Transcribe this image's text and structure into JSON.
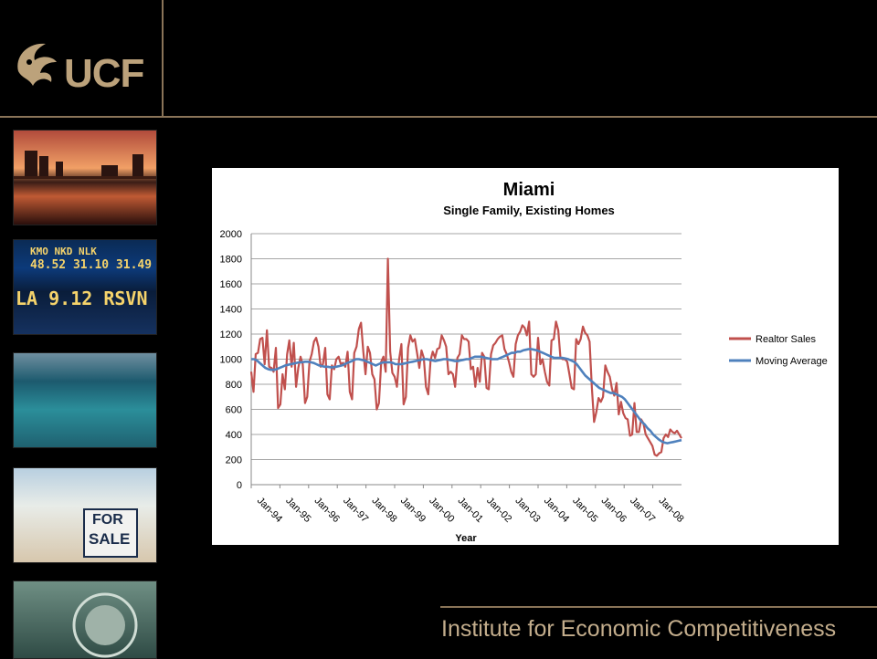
{
  "header": {
    "logo_text": "UCF"
  },
  "thumbnails": {
    "ticker_row1": "48.52 31.10 31.49",
    "ticker_symbols": "KMO NKD NLK",
    "ticker_row2": "LA 9.12 RSVN",
    "for_text": "FOR",
    "sale_text": "SALE"
  },
  "footer": {
    "text": "Institute for Economic Competitiveness"
  },
  "chart_data": {
    "type": "line",
    "title": "Miami",
    "subtitle": "Single Family, Existing Homes",
    "xlabel": "Year",
    "ylabel": "",
    "ylim": [
      0,
      2000
    ],
    "yticks": [
      0,
      200,
      400,
      600,
      800,
      1000,
      1200,
      1400,
      1600,
      1800,
      2000
    ],
    "x_tick_labels": [
      "Jan-94",
      "Jan-95",
      "Jan-96",
      "Jan-97",
      "Jan-98",
      "Jan-99",
      "Jan-00",
      "Jan-01",
      "Jan-02",
      "Jan-03",
      "Jan-04",
      "Jan-05",
      "Jan-06",
      "Jan-07",
      "Jan-08"
    ],
    "grid": true,
    "legend_position": "right",
    "series": [
      {
        "name": "Realtor Sales",
        "color": "#c0504d",
        "values": [
          900,
          740,
          1040,
          1050,
          1160,
          1170,
          960,
          1230,
          940,
          930,
          900,
          1090,
          610,
          640,
          880,
          760,
          1040,
          1150,
          940,
          1130,
          780,
          930,
          1020,
          960,
          650,
          700,
          980,
          1040,
          1140,
          1170,
          1100,
          940,
          960,
          1090,
          720,
          680,
          950,
          920,
          1000,
          1020,
          960,
          970,
          940,
          1060,
          740,
          680,
          1050,
          1100,
          1240,
          1290,
          1060,
          880,
          1100,
          1050,
          880,
          840,
          600,
          650,
          980,
          1020,
          900,
          1800,
          1060,
          890,
          860,
          780,
          1000,
          1120,
          640,
          700,
          1090,
          1190,
          1140,
          1160,
          1050,
          930,
          1070,
          1010,
          780,
          720,
          990,
          1060,
          1010,
          1080,
          1090,
          1190,
          1150,
          1100,
          880,
          900,
          880,
          780,
          1010,
          1040,
          1190,
          1160,
          1160,
          1140,
          920,
          940,
          780,
          930,
          820,
          1050,
          1020,
          770,
          760,
          1040,
          1110,
          1130,
          1160,
          1180,
          1190,
          1080,
          1040,
          980,
          900,
          860,
          1120,
          1190,
          1220,
          1270,
          1250,
          1190,
          1300,
          880,
          860,
          880,
          1170,
          960,
          1000,
          900,
          820,
          790,
          1150,
          1160,
          1300,
          1230,
          1010,
          1000,
          1000,
          980,
          880,
          770,
          760,
          1160,
          1120,
          1160,
          1260,
          1210,
          1190,
          1140,
          770,
          500,
          580,
          690,
          660,
          700,
          950,
          900,
          860,
          760,
          710,
          810,
          560,
          660,
          570,
          530,
          520,
          390,
          400,
          650,
          420,
          420,
          520,
          490,
          400,
          370,
          340,
          310,
          240,
          230,
          250,
          260,
          370,
          400,
          380,
          440,
          420,
          410,
          430,
          400,
          370
        ],
        "step": 1
      },
      {
        "name": "Moving Average",
        "color": "#4f81bd",
        "values": [
          1000,
          1000,
          990,
          970,
          950,
          930,
          920,
          915,
          915,
          920,
          930,
          940,
          950,
          955,
          960,
          965,
          970,
          975,
          975,
          980,
          980,
          975,
          970,
          960,
          950,
          945,
          940,
          940,
          935,
          935,
          940,
          945,
          950,
          960,
          970,
          980,
          990,
          1000,
          1000,
          995,
          990,
          980,
          970,
          960,
          950,
          960,
          970,
          975,
          975,
          975,
          970,
          960,
          960,
          960,
          965,
          970,
          975,
          980,
          985,
          990,
          995,
          1000,
          1000,
          995,
          990,
          985,
          990,
          995,
          1000,
          1000,
          995,
          990,
          985,
          985,
          990,
          995,
          1000,
          1000,
          1010,
          1020,
          1020,
          1020,
          1015,
          1010,
          1005,
          1000,
          1000,
          1000,
          1010,
          1020,
          1030,
          1040,
          1050,
          1050,
          1060,
          1060,
          1070,
          1075,
          1080,
          1080,
          1075,
          1070,
          1060,
          1050,
          1040,
          1030,
          1020,
          1010,
          1010,
          1010,
          1010,
          1005,
          1000,
          990,
          980,
          960,
          930,
          900,
          870,
          850,
          830,
          810,
          790,
          770,
          760,
          750,
          740,
          730,
          730,
          720,
          710,
          700,
          680,
          650,
          620,
          590,
          560,
          530,
          500,
          480,
          450,
          430,
          400,
          380,
          360,
          345,
          335,
          330,
          335,
          340,
          345,
          350,
          355
        ]
      }
    ]
  }
}
